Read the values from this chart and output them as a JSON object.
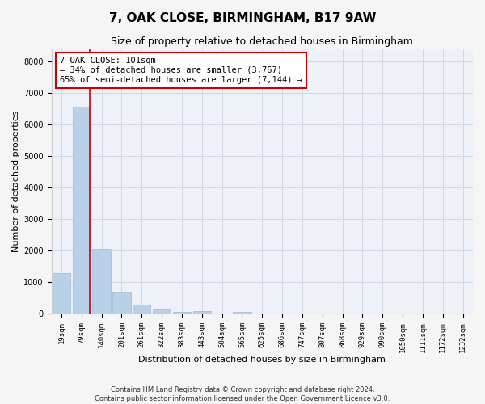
{
  "title": "7, OAK CLOSE, BIRMINGHAM, B17 9AW",
  "subtitle": "Size of property relative to detached houses in Birmingham",
  "xlabel": "Distribution of detached houses by size in Birmingham",
  "ylabel": "Number of detached properties",
  "footnote1": "Contains HM Land Registry data © Crown copyright and database right 2024.",
  "footnote2": "Contains public sector information licensed under the Open Government Licence v3.0.",
  "annotation_title": "7 OAK CLOSE: 101sqm",
  "annotation_line1": "← 34% of detached houses are smaller (3,767)",
  "annotation_line2": "65% of semi-detached houses are larger (7,144) →",
  "bar_categories": [
    "19sqm",
    "79sqm",
    "140sqm",
    "201sqm",
    "261sqm",
    "322sqm",
    "383sqm",
    "443sqm",
    "504sqm",
    "565sqm",
    "625sqm",
    "686sqm",
    "747sqm",
    "807sqm",
    "868sqm",
    "929sqm",
    "990sqm",
    "1050sqm",
    "1111sqm",
    "1172sqm",
    "1232sqm"
  ],
  "bar_values": [
    1300,
    6580,
    2060,
    680,
    295,
    140,
    75,
    90,
    5,
    75,
    0,
    0,
    0,
    0,
    0,
    0,
    0,
    0,
    0,
    0,
    0
  ],
  "bar_color": "#b8d0e8",
  "bar_edge_color": "#9ab8d0",
  "vline_color": "#cc0000",
  "vline_x": 1.42,
  "ylim": [
    0,
    8400
  ],
  "yticks": [
    0,
    1000,
    2000,
    3000,
    4000,
    5000,
    6000,
    7000,
    8000
  ],
  "bg_color": "#eef2f8",
  "grid_color": "#d0d8e8",
  "fig_bg_color": "#f5f5f5",
  "annotation_box_color": "#ffffff",
  "annotation_box_edge": "#cc0000",
  "title_fontsize": 11,
  "subtitle_fontsize": 9,
  "axis_label_fontsize": 8,
  "tick_fontsize": 6.5,
  "annotation_fontsize": 7.5
}
